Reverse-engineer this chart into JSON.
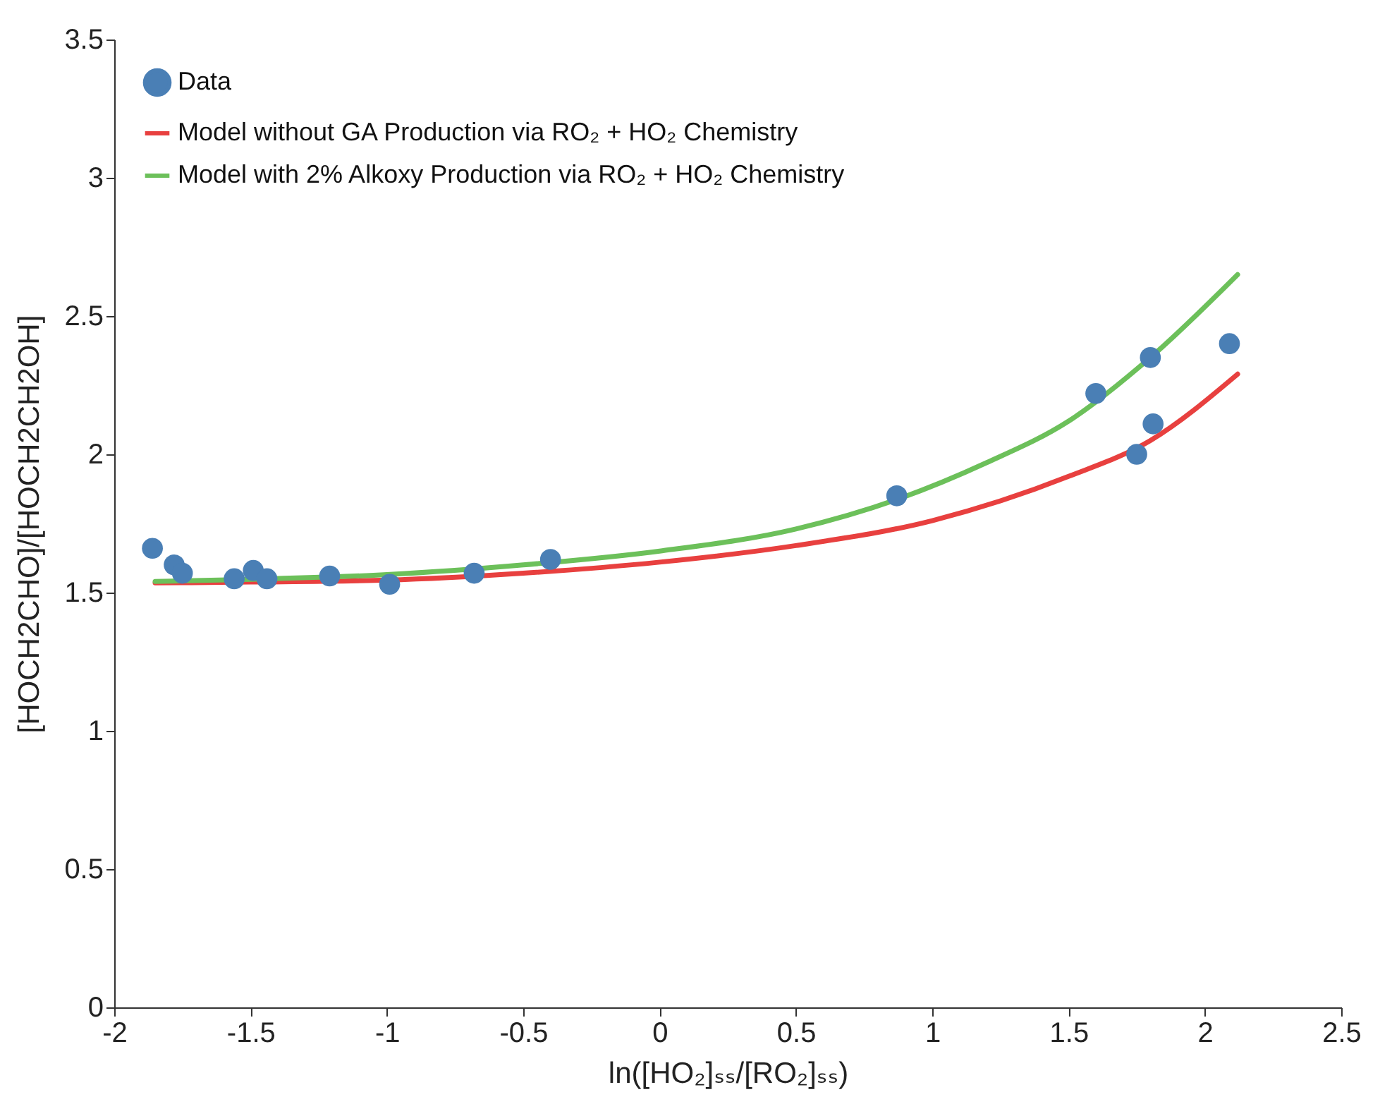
{
  "chart_data": {
    "type": "scatter",
    "xlabel": "ln([HO₂]ₛₛ/[RO₂]ₛₛ)",
    "ylabel": "[HOCH2CHO]/[HOCH2CH2OH]",
    "xlim": [
      -2,
      2.5
    ],
    "xticks": [
      -2,
      -1.5,
      -1,
      -0.5,
      0,
      0.5,
      1,
      1.5,
      2,
      2.5
    ],
    "ylim": [
      0,
      3.5
    ],
    "yticks": [
      0,
      0.5,
      1,
      1.5,
      2,
      2.5,
      3,
      3.5
    ],
    "grid": false,
    "legend": "top left",
    "marker": "circle",
    "series": [
      {
        "name": "Data",
        "color": "#4a7fb5",
        "x": [
          -1.86,
          -1.78,
          -1.75,
          -1.56,
          -1.49,
          -1.44,
          -1.21,
          -0.99,
          -0.68,
          -0.4,
          0.87,
          1.6,
          1.8,
          1.81,
          1.75,
          2.09
        ],
        "values": [
          1.66,
          1.6,
          1.57,
          1.55,
          1.58,
          1.55,
          1.56,
          1.53,
          1.57,
          1.62,
          1.85,
          2.22,
          2.35,
          2.11,
          2.0,
          2.4
        ]
      },
      {
        "name": "Model without GA Production via RO₂ + HO₂ Chemistry",
        "type": "line",
        "color": "#e8403f",
        "line_style": "solid",
        "marker": "none",
        "x": [
          -1.85,
          -1.5,
          -1,
          -0.5,
          0,
          0.5,
          1,
          1.5,
          1.8,
          2.12
        ],
        "values": [
          1.535,
          1.538,
          1.545,
          1.57,
          1.61,
          1.67,
          1.76,
          1.92,
          2.05,
          2.29
        ]
      },
      {
        "name": "Model with 2% Alkoxy Production via RO₂ + HO₂ Chemistry",
        "type": "line",
        "color": "#6cc05a",
        "line_style": "solid",
        "marker": "none",
        "x": [
          -1.85,
          -1.5,
          -1,
          -0.5,
          0,
          0.5,
          0.88,
          1.2,
          1.5,
          1.8,
          2.12
        ],
        "values": [
          1.54,
          1.548,
          1.565,
          1.6,
          1.65,
          1.73,
          1.84,
          1.97,
          2.12,
          2.35,
          2.65
        ]
      }
    ]
  }
}
